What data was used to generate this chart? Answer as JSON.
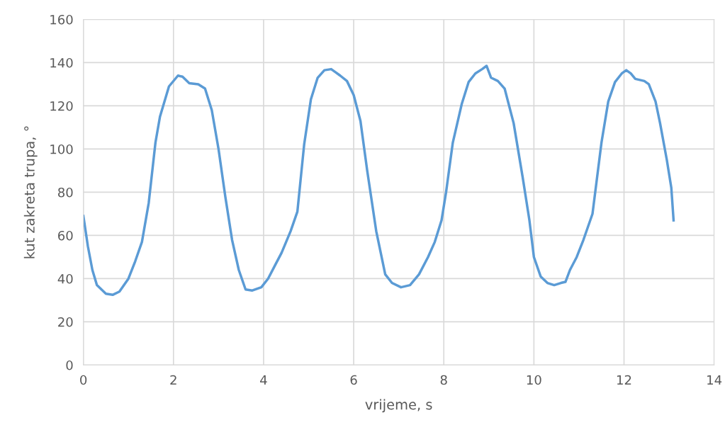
{
  "chart_data": {
    "type": "line",
    "xlabel": "vrijeme, s",
    "ylabel": "kut zakreta trupa, °",
    "xlim": [
      0,
      14
    ],
    "xticks": [
      0,
      2,
      4,
      6,
      8,
      10,
      12,
      14
    ],
    "ylim": [
      0,
      160
    ],
    "yticks": [
      0,
      20,
      40,
      60,
      80,
      100,
      120,
      140,
      160
    ],
    "grid": true,
    "marker": "none",
    "line_style": "solid",
    "series": [
      {
        "color": "#5b9bd5",
        "x": [
          0,
          0.1,
          0.2,
          0.3,
          0.5,
          0.65,
          0.8,
          1.0,
          1.15,
          1.3,
          1.45,
          1.6,
          1.7,
          1.9,
          2.1,
          2.2,
          2.35,
          2.55,
          2.7,
          2.85,
          3.0,
          3.15,
          3.3,
          3.45,
          3.6,
          3.75,
          3.95,
          4.1,
          4.25,
          4.4,
          4.6,
          4.75,
          4.9,
          5.05,
          5.2,
          5.35,
          5.5,
          5.6,
          5.7,
          5.85,
          6.0,
          6.15,
          6.3,
          6.5,
          6.7,
          6.85,
          7.05,
          7.25,
          7.45,
          7.65,
          7.8,
          7.95,
          8.05,
          8.2,
          8.4,
          8.55,
          8.7,
          8.85,
          8.95,
          9.05,
          9.2,
          9.35,
          9.55,
          9.75,
          9.9,
          10.0,
          10.15,
          10.3,
          10.45,
          10.6,
          10.7,
          10.8,
          10.95,
          11.1,
          11.3,
          11.5,
          11.65,
          11.8,
          11.95,
          12.05,
          12.15,
          12.25,
          12.45,
          12.55,
          12.7,
          12.8,
          12.95,
          13.05,
          13.1
        ],
        "values": [
          69,
          55,
          44,
          37,
          33,
          32.5,
          34,
          40,
          48,
          57,
          75,
          103,
          115,
          129,
          134,
          133.5,
          130.5,
          130,
          128,
          118,
          100,
          78,
          58,
          44,
          35,
          34.5,
          36,
          40,
          46,
          52,
          62,
          71,
          102,
          123,
          133,
          136.5,
          137,
          135.5,
          134,
          131.5,
          125,
          113,
          90,
          62,
          42,
          38,
          36,
          37,
          42,
          50,
          57,
          67,
          80,
          103,
          121,
          131,
          135,
          137,
          138.5,
          133,
          131.5,
          128,
          112,
          87,
          67,
          50,
          41,
          38,
          37,
          38,
          38.5,
          44,
          50,
          58,
          70,
          103,
          122,
          131,
          135,
          136.5,
          135,
          132.5,
          131.5,
          130,
          122,
          112,
          95,
          82,
          67
        ]
      }
    ]
  }
}
